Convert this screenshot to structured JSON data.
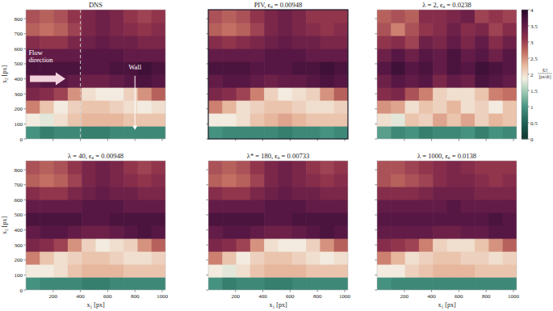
{
  "chart_data": [
    {
      "type": "heatmap",
      "title": "DNS",
      "xlabel": null,
      "ylabel": "x₂ [px]",
      "tick_labels": "y",
      "xlim": [
        0,
        1024
      ],
      "ylim": [
        0,
        860
      ],
      "xticks": [
        200,
        400,
        600,
        800,
        1000
      ],
      "yticks": [
        0,
        100,
        200,
        300,
        400,
        500,
        600,
        700,
        800
      ],
      "x_edges": [
        0,
        102.4,
        204.8,
        307.2,
        409.6,
        512,
        614.4,
        716.8,
        819.2,
        921.6,
        1024
      ],
      "y_edges": [
        0,
        86,
        172,
        258,
        344,
        430,
        516,
        602,
        688,
        774,
        860
      ],
      "values": [
        [
          1.0,
          0.8,
          0.9,
          0.9,
          0.8,
          0.8,
          0.9,
          0.9,
          0.9,
          0.9
        ],
        [
          1.9,
          1.8,
          2.0,
          2.2,
          2.3,
          2.3,
          2.3,
          2.2,
          2.2,
          2.2
        ],
        [
          2.6,
          2.2,
          1.9,
          2.1,
          2.2,
          2.2,
          2.1,
          2.0,
          1.9,
          2.0
        ],
        [
          3.3,
          3.2,
          3.0,
          2.5,
          2.0,
          1.9,
          1.9,
          2.1,
          2.5,
          2.8
        ],
        [
          3.5,
          3.6,
          3.6,
          3.5,
          3.4,
          3.4,
          3.5,
          3.6,
          3.7,
          3.6
        ],
        [
          3.7,
          3.7,
          3.7,
          3.7,
          3.6,
          3.6,
          3.7,
          3.7,
          3.8,
          3.7
        ],
        [
          3.5,
          3.5,
          3.5,
          3.5,
          3.6,
          3.6,
          3.6,
          3.5,
          3.5,
          3.5
        ],
        [
          3.2,
          3.1,
          3.1,
          3.3,
          3.4,
          3.5,
          3.4,
          3.4,
          3.3,
          3.3
        ],
        [
          2.8,
          2.7,
          2.8,
          3.0,
          3.3,
          3.4,
          3.3,
          3.2,
          3.1,
          3.2
        ],
        [
          2.9,
          2.8,
          2.9,
          3.1,
          3.3,
          3.4,
          3.3,
          3.1,
          3.0,
          3.1
        ]
      ],
      "annotations": [
        {
          "type": "arrow",
          "text": [
            "Flow",
            "direction"
          ],
          "x": 20,
          "y": 560,
          "arrow_from": [
            30,
            400
          ],
          "arrow_to": [
            290,
            400
          ]
        },
        {
          "type": "arrow",
          "text": [
            "Wall"
          ],
          "x": 800,
          "y": 460,
          "arrow_from": [
            800,
            420
          ],
          "arrow_to": [
            800,
            60
          ]
        },
        {
          "type": "vline",
          "x": 400
        }
      ]
    },
    {
      "type": "heatmap",
      "title": "PIV, ϵᵤ = 0.00948",
      "xlabel": null,
      "ylabel": null,
      "tick_labels": false,
      "xlim": [
        0,
        1024
      ],
      "ylim": [
        0,
        860
      ],
      "xticks": [
        200,
        400,
        600,
        800,
        1000
      ],
      "yticks": [
        0,
        100,
        200,
        300,
        400,
        500,
        600,
        700,
        800
      ],
      "x_edges": [
        0,
        102.4,
        204.8,
        307.2,
        409.6,
        512,
        614.4,
        716.8,
        819.2,
        921.6,
        1024
      ],
      "y_edges": [
        0,
        86,
        172,
        258,
        344,
        430,
        516,
        602,
        688,
        774,
        860
      ],
      "values": [
        [
          1.0,
          0.9,
          0.9,
          0.9,
          0.9,
          0.8,
          0.9,
          0.9,
          1.0,
          0.9
        ],
        [
          1.9,
          1.9,
          2.0,
          2.2,
          2.3,
          2.4,
          2.3,
          2.2,
          2.2,
          2.2
        ],
        [
          2.6,
          2.3,
          2.0,
          2.1,
          2.2,
          2.2,
          2.1,
          2.0,
          2.0,
          2.1
        ],
        [
          3.3,
          3.2,
          3.0,
          2.6,
          2.1,
          1.9,
          2.0,
          2.1,
          2.5,
          2.8
        ],
        [
          3.5,
          3.6,
          3.6,
          3.5,
          3.4,
          3.5,
          3.5,
          3.6,
          3.7,
          3.6
        ],
        [
          3.7,
          3.7,
          3.7,
          3.6,
          3.6,
          3.6,
          3.7,
          3.7,
          3.8,
          3.7
        ],
        [
          3.5,
          3.5,
          3.5,
          3.5,
          3.6,
          3.6,
          3.6,
          3.5,
          3.5,
          3.5
        ],
        [
          3.2,
          3.1,
          3.2,
          3.3,
          3.4,
          3.5,
          3.4,
          3.4,
          3.3,
          3.3
        ],
        [
          2.8,
          2.7,
          2.8,
          3.0,
          3.3,
          3.4,
          3.3,
          3.2,
          3.1,
          3.2
        ],
        [
          2.9,
          2.8,
          2.9,
          3.1,
          3.3,
          3.4,
          3.3,
          3.1,
          3.1,
          3.1
        ]
      ]
    },
    {
      "type": "heatmap",
      "title": "λ = 2, ϵᵤ = 0.0238",
      "xlabel": null,
      "ylabel": null,
      "tick_labels": false,
      "xlim": [
        0,
        1024
      ],
      "ylim": [
        0,
        860
      ],
      "xticks": [
        200,
        400,
        600,
        800,
        1000
      ],
      "yticks": [
        0,
        100,
        200,
        300,
        400,
        500,
        600,
        700,
        800
      ],
      "x_edges": [
        0,
        102.4,
        204.8,
        307.2,
        409.6,
        512,
        614.4,
        716.8,
        819.2,
        921.6,
        1024
      ],
      "y_edges": [
        0,
        86,
        172,
        258,
        344,
        430,
        516,
        602,
        688,
        774,
        860
      ],
      "values": [
        [
          1.1,
          0.9,
          1.0,
          0.8,
          0.9,
          0.9,
          1.0,
          0.8,
          1.0,
          0.9
        ],
        [
          2.0,
          1.8,
          2.2,
          2.1,
          2.4,
          2.2,
          2.4,
          2.1,
          2.3,
          2.2
        ],
        [
          2.5,
          2.4,
          2.0,
          2.2,
          2.1,
          2.3,
          2.0,
          2.1,
          1.9,
          2.2
        ],
        [
          3.2,
          3.3,
          2.9,
          2.6,
          2.1,
          2.0,
          2.0,
          2.2,
          2.6,
          2.7
        ],
        [
          3.4,
          3.6,
          3.5,
          3.6,
          3.3,
          3.5,
          3.4,
          3.7,
          3.6,
          3.5
        ],
        [
          3.6,
          3.8,
          3.6,
          3.7,
          3.5,
          3.7,
          3.6,
          3.8,
          3.7,
          3.6
        ],
        [
          3.4,
          3.6,
          3.4,
          3.6,
          3.5,
          3.7,
          3.5,
          3.6,
          3.4,
          3.6
        ],
        [
          3.1,
          3.2,
          3.0,
          3.4,
          3.3,
          3.5,
          3.3,
          3.5,
          3.2,
          3.4
        ],
        [
          2.9,
          2.6,
          2.9,
          3.1,
          3.2,
          3.4,
          3.2,
          3.3,
          3.0,
          3.2
        ],
        [
          2.8,
          2.9,
          2.8,
          3.2,
          3.2,
          3.3,
          3.4,
          3.0,
          3.1,
          3.0
        ]
      ]
    },
    {
      "type": "heatmap",
      "title": "λ = 40, ϵᵤ = 0.00948",
      "xlabel": "x₁ [px]",
      "ylabel": "x₂ [px]",
      "tick_labels": true,
      "xlim": [
        0,
        1024
      ],
      "ylim": [
        0,
        860
      ],
      "xticks": [
        200,
        400,
        600,
        800,
        1000
      ],
      "yticks": [
        0,
        100,
        200,
        300,
        400,
        500,
        600,
        700,
        800
      ],
      "x_edges": [
        0,
        102.4,
        204.8,
        307.2,
        409.6,
        512,
        614.4,
        716.8,
        819.2,
        921.6,
        1024
      ],
      "y_edges": [
        0,
        86,
        172,
        258,
        344,
        430,
        516,
        602,
        688,
        774,
        860
      ],
      "values": [
        [
          1.0,
          0.9,
          0.9,
          0.9,
          0.8,
          0.8,
          0.9,
          0.9,
          0.9,
          0.9
        ],
        [
          1.9,
          1.9,
          2.0,
          2.2,
          2.3,
          2.3,
          2.3,
          2.2,
          2.2,
          2.2
        ],
        [
          2.6,
          2.2,
          2.0,
          2.1,
          2.2,
          2.2,
          2.1,
          2.0,
          2.0,
          2.1
        ],
        [
          3.3,
          3.2,
          3.0,
          2.5,
          2.1,
          1.9,
          2.0,
          2.1,
          2.5,
          2.8
        ],
        [
          3.5,
          3.6,
          3.6,
          3.5,
          3.4,
          3.4,
          3.5,
          3.6,
          3.7,
          3.6
        ],
        [
          3.7,
          3.7,
          3.7,
          3.7,
          3.6,
          3.6,
          3.7,
          3.7,
          3.7,
          3.7
        ],
        [
          3.5,
          3.5,
          3.5,
          3.5,
          3.6,
          3.6,
          3.6,
          3.5,
          3.5,
          3.5
        ],
        [
          3.2,
          3.1,
          3.1,
          3.3,
          3.4,
          3.5,
          3.4,
          3.4,
          3.3,
          3.3
        ],
        [
          2.8,
          2.7,
          2.8,
          3.0,
          3.3,
          3.4,
          3.3,
          3.2,
          3.1,
          3.2
        ],
        [
          2.9,
          2.8,
          2.9,
          3.1,
          3.3,
          3.4,
          3.3,
          3.1,
          3.0,
          3.1
        ]
      ]
    },
    {
      "type": "heatmap",
      "title": "λ* = 180, ϵᵤ = 0.00733",
      "xlabel": "x₁ [px]",
      "ylabel": null,
      "tick_labels": "x",
      "xlim": [
        0,
        1024
      ],
      "ylim": [
        0,
        860
      ],
      "xticks": [
        200,
        400,
        600,
        800,
        1000
      ],
      "yticks": [
        0,
        100,
        200,
        300,
        400,
        500,
        600,
        700,
        800
      ],
      "x_edges": [
        0,
        102.4,
        204.8,
        307.2,
        409.6,
        512,
        614.4,
        716.8,
        819.2,
        921.6,
        1024
      ],
      "y_edges": [
        0,
        86,
        172,
        258,
        344,
        430,
        516,
        602,
        688,
        774,
        860
      ],
      "values": [
        [
          1.0,
          0.8,
          0.9,
          0.9,
          0.8,
          0.8,
          0.9,
          0.9,
          0.9,
          0.9
        ],
        [
          1.9,
          1.8,
          2.0,
          2.2,
          2.3,
          2.3,
          2.3,
          2.2,
          2.2,
          2.2
        ],
        [
          2.6,
          2.2,
          1.9,
          2.1,
          2.2,
          2.2,
          2.1,
          2.0,
          1.9,
          2.0
        ],
        [
          3.3,
          3.2,
          3.0,
          2.5,
          2.0,
          1.9,
          1.9,
          2.1,
          2.5,
          2.8
        ],
        [
          3.5,
          3.6,
          3.6,
          3.5,
          3.4,
          3.4,
          3.5,
          3.6,
          3.7,
          3.6
        ],
        [
          3.7,
          3.7,
          3.7,
          3.7,
          3.6,
          3.6,
          3.7,
          3.7,
          3.7,
          3.7
        ],
        [
          3.5,
          3.5,
          3.5,
          3.5,
          3.6,
          3.6,
          3.6,
          3.5,
          3.5,
          3.5
        ],
        [
          3.2,
          3.1,
          3.1,
          3.3,
          3.4,
          3.5,
          3.4,
          3.4,
          3.3,
          3.3
        ],
        [
          2.8,
          2.7,
          2.8,
          3.0,
          3.3,
          3.4,
          3.3,
          3.2,
          3.1,
          3.2
        ],
        [
          2.9,
          2.8,
          2.9,
          3.1,
          3.3,
          3.4,
          3.3,
          3.1,
          3.0,
          3.1
        ]
      ]
    },
    {
      "type": "heatmap",
      "title": "λ = 1000, ϵᵤ = 0.0138",
      "xlabel": "x₁ [px]",
      "ylabel": null,
      "tick_labels": "x",
      "xlim": [
        0,
        1024
      ],
      "ylim": [
        0,
        860
      ],
      "xticks": [
        200,
        400,
        600,
        800,
        1000
      ],
      "yticks": [
        0,
        100,
        200,
        300,
        400,
        500,
        600,
        700,
        800
      ],
      "x_edges": [
        0,
        102.4,
        204.8,
        307.2,
        409.6,
        512,
        614.4,
        716.8,
        819.2,
        921.6,
        1024
      ],
      "y_edges": [
        0,
        86,
        172,
        258,
        344,
        430,
        516,
        602,
        688,
        774,
        860
      ],
      "values": [
        [
          1.0,
          0.9,
          0.9,
          0.9,
          0.9,
          0.9,
          0.9,
          0.9,
          0.9,
          0.9
        ],
        [
          1.9,
          1.9,
          2.1,
          2.2,
          2.3,
          2.3,
          2.3,
          2.2,
          2.2,
          2.2
        ],
        [
          2.6,
          2.3,
          2.0,
          2.1,
          2.2,
          2.2,
          2.1,
          2.1,
          2.0,
          2.1
        ],
        [
          3.2,
          3.1,
          3.0,
          2.6,
          2.1,
          2.0,
          2.0,
          2.2,
          2.5,
          2.8
        ],
        [
          3.5,
          3.5,
          3.5,
          3.5,
          3.4,
          3.4,
          3.5,
          3.5,
          3.6,
          3.6
        ],
        [
          3.6,
          3.6,
          3.6,
          3.6,
          3.6,
          3.6,
          3.6,
          3.6,
          3.7,
          3.6
        ],
        [
          3.5,
          3.5,
          3.5,
          3.5,
          3.5,
          3.6,
          3.5,
          3.5,
          3.5,
          3.5
        ],
        [
          3.2,
          3.2,
          3.2,
          3.3,
          3.4,
          3.4,
          3.4,
          3.3,
          3.3,
          3.3
        ],
        [
          2.9,
          2.8,
          2.9,
          3.0,
          3.2,
          3.3,
          3.3,
          3.2,
          3.1,
          3.2
        ],
        [
          2.9,
          2.9,
          3.0,
          3.1,
          3.2,
          3.3,
          3.2,
          3.1,
          3.1,
          3.1
        ]
      ],
      "colorbar": {
        "range": [
          0,
          4
        ],
        "ticks": [
          0,
          0.5,
          1,
          1.5,
          2,
          2.5,
          3,
          3.5,
          4
        ],
        "label": [
          "|U|",
          "[px/dt]"
        ]
      }
    }
  ]
}
